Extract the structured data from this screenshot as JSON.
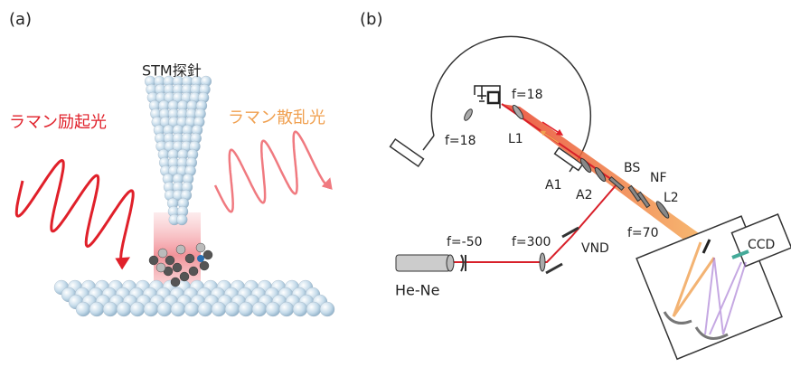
{
  "panel_a": {
    "label": "(a)",
    "tip_label": "STM探針",
    "excitation_label": "ラマン励起光",
    "scattered_label": "ラマン散乱光"
  },
  "panel_b": {
    "label": "(b)",
    "lens_focus_inner": "f=18",
    "lens_name": "L1",
    "lens_focus_outer": "f=18",
    "aperture_1": "A1",
    "aperture_2": "A2",
    "beam_splitter": "BS",
    "notch_filter": "NF",
    "lens_2": "L2",
    "lens_2_focus": "f=70",
    "lens_300": "f=300",
    "lens_minus50": "f=-50",
    "filter": "VND",
    "laser": "He-Ne",
    "detector": "CCD"
  }
}
